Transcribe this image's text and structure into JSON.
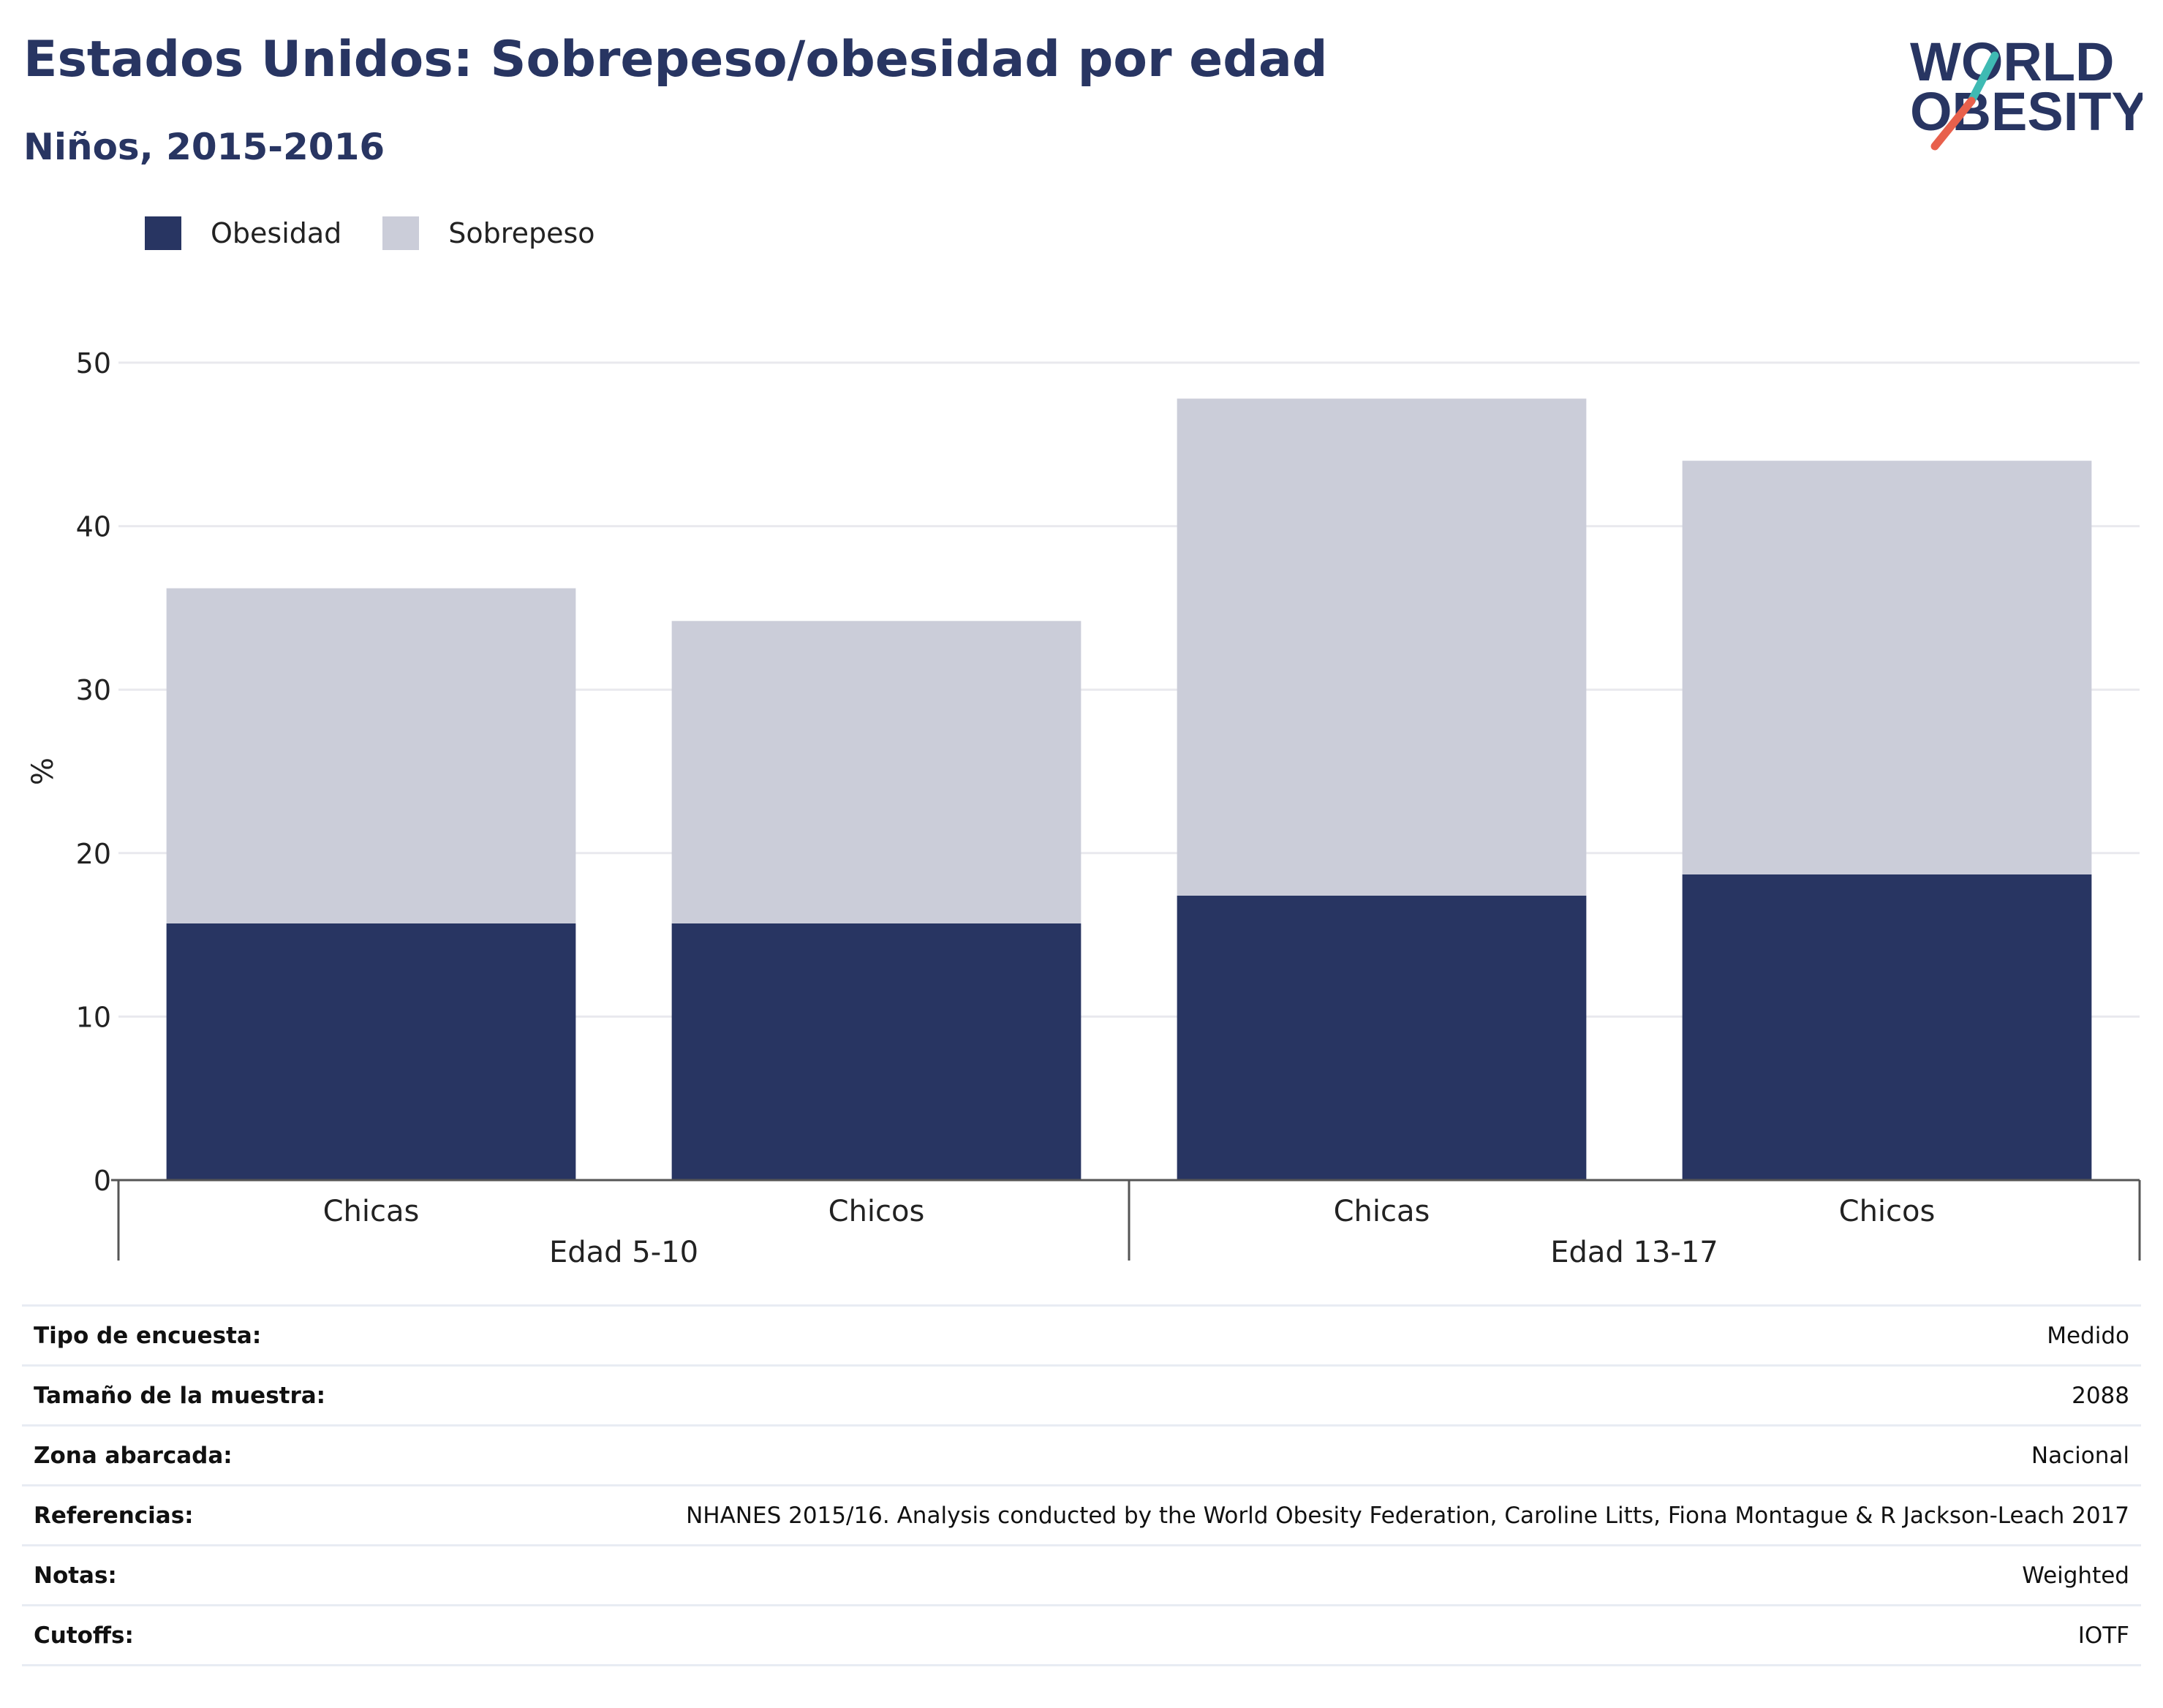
{
  "header": {
    "title": "Estados Unidos: Sobrepeso/obesidad por edad",
    "subtitle": "Niños, 2015-2016"
  },
  "logo": {
    "line1": "WORLD",
    "line2": "OBESITY",
    "colors": {
      "text": "#283562",
      "slash_top": "#3fbab3",
      "slash_bottom": "#e8604c"
    }
  },
  "colors": {
    "obesidad": "#283562",
    "sobrepeso": "#cbcdd9",
    "grid": "#e9e9ee",
    "axis": "#555555"
  },
  "legend": [
    {
      "label": "Obesidad",
      "color": "#283562"
    },
    {
      "label": "Sobrepeso",
      "color": "#cbcdd9"
    }
  ],
  "chart_data": {
    "type": "bar",
    "stacked": true,
    "ylabel": "%",
    "ylim": [
      0,
      50
    ],
    "yticks": [
      0,
      10,
      20,
      30,
      40,
      50
    ],
    "grid": true,
    "legend_position": "top-left",
    "categories": [
      "Chicas",
      "Chicos",
      "Chicas",
      "Chicos"
    ],
    "groups": [
      {
        "label": "Edad 5-10",
        "categories": [
          "Chicas",
          "Chicos"
        ]
      },
      {
        "label": "Edad 13-17",
        "categories": [
          "Chicas",
          "Chicos"
        ]
      }
    ],
    "series": [
      {
        "name": "Obesidad",
        "values": [
          15.7,
          15.7,
          17.4,
          18.7
        ]
      },
      {
        "name": "Sobrepeso",
        "values": [
          20.5,
          18.5,
          30.4,
          25.3
        ]
      }
    ]
  },
  "meta": [
    {
      "key": "Tipo de encuesta:",
      "value": "Medido"
    },
    {
      "key": "Tamaño de la muestra:",
      "value": "2088"
    },
    {
      "key": "Zona abarcada:",
      "value": "Nacional"
    },
    {
      "key": "Referencias:",
      "value": "NHANES 2015/16. Analysis conducted by the World Obesity Federation, Caroline Litts, Fiona Montague & R Jackson-Leach 2017"
    },
    {
      "key": "Notas:",
      "value": "Weighted"
    },
    {
      "key": "Cutoffs:",
      "value": "IOTF"
    }
  ]
}
